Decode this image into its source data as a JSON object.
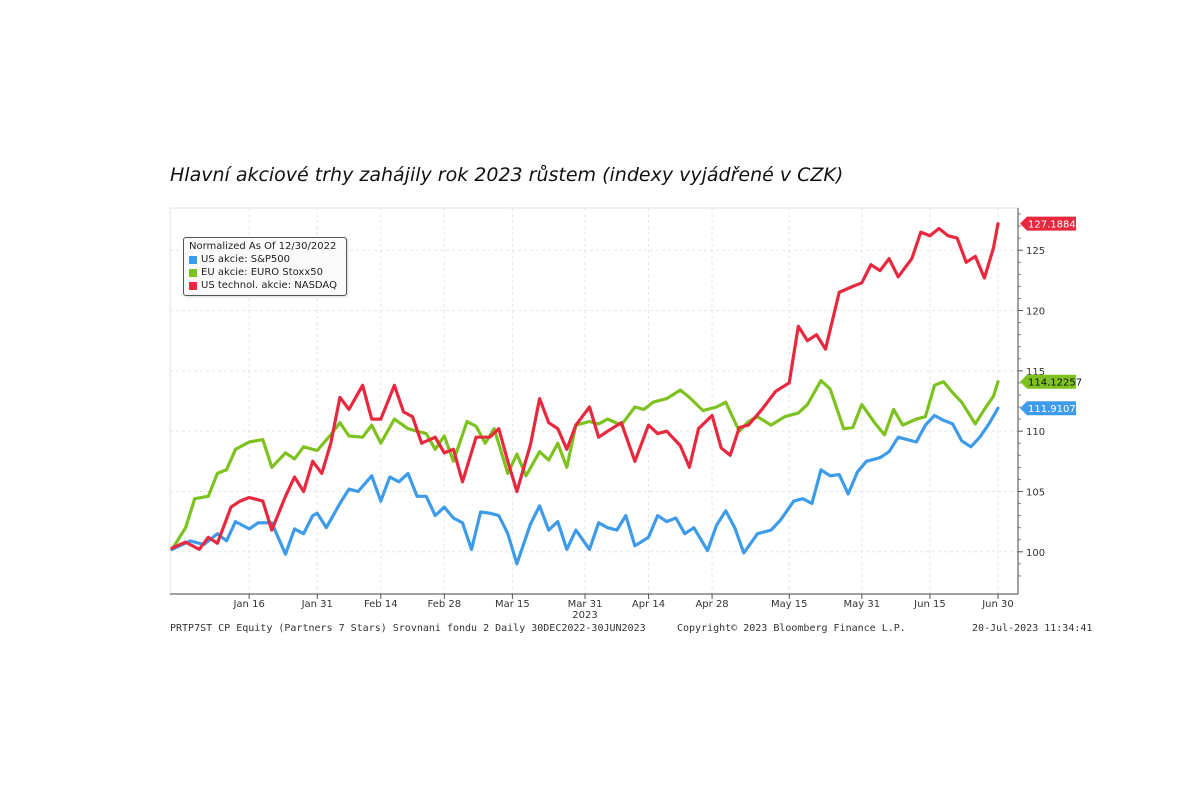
{
  "chart_data": {
    "type": "line",
    "title": "Hlavní akciové trhy zahájily rok 2023 růstem (indexy vyjádřené v CZK)",
    "legend_header": "Normalized As Of 12/30/2022",
    "legend_position": "top-left",
    "grid": true,
    "x_tick_labels": [
      "Jan 16",
      "Jan 31",
      "Feb 14",
      "Feb 28",
      "Mar 15",
      "Mar 31",
      "Apr 14",
      "Apr 28",
      "May 15",
      "May 31",
      "Jun 15",
      "Jun 30"
    ],
    "x_year_label": "2023",
    "y_tick_labels": [
      "100",
      "105",
      "110",
      "115",
      "120",
      "125"
    ],
    "ylim": [
      96.5,
      128.5
    ],
    "series": [
      {
        "name": "US akcie: S&P500",
        "color": "#3d9be9",
        "last_value": "111.91076",
        "values": [
          [
            "2022-12-30",
            100.2
          ],
          [
            "2023-01-03",
            100.9
          ],
          [
            "2023-01-06",
            100.6
          ],
          [
            "2023-01-09",
            101.5
          ],
          [
            "2023-01-11",
            100.9
          ],
          [
            "2023-01-13",
            102.5
          ],
          [
            "2023-01-16",
            101.9
          ],
          [
            "2023-01-18",
            102.4
          ],
          [
            "2023-01-21",
            102.4
          ],
          [
            "2023-01-24",
            99.8
          ],
          [
            "2023-01-26",
            101.9
          ],
          [
            "2023-01-28",
            101.5
          ],
          [
            "2023-01-30",
            103.0
          ],
          [
            "2023-01-31",
            103.2
          ],
          [
            "2023-02-02",
            102.0
          ],
          [
            "2023-02-05",
            104.0
          ],
          [
            "2023-02-07",
            105.2
          ],
          [
            "2023-02-09",
            105.0
          ],
          [
            "2023-02-12",
            106.3
          ],
          [
            "2023-02-14",
            104.2
          ],
          [
            "2023-02-16",
            106.2
          ],
          [
            "2023-02-18",
            105.8
          ],
          [
            "2023-02-20",
            106.5
          ],
          [
            "2023-02-22",
            104.6
          ],
          [
            "2023-02-24",
            104.6
          ],
          [
            "2023-02-26",
            103.0
          ],
          [
            "2023-02-28",
            103.7
          ],
          [
            "2023-03-02",
            102.8
          ],
          [
            "2023-03-04",
            102.4
          ],
          [
            "2023-03-06",
            100.2
          ],
          [
            "2023-03-08",
            103.3
          ],
          [
            "2023-03-10",
            103.2
          ],
          [
            "2023-03-12",
            103.0
          ],
          [
            "2023-03-14",
            101.5
          ],
          [
            "2023-03-16",
            99.0
          ],
          [
            "2023-03-19",
            102.3
          ],
          [
            "2023-03-21",
            103.8
          ],
          [
            "2023-03-23",
            101.8
          ],
          [
            "2023-03-25",
            102.5
          ],
          [
            "2023-03-27",
            100.2
          ],
          [
            "2023-03-29",
            101.8
          ],
          [
            "2023-04-01",
            100.2
          ],
          [
            "2023-04-03",
            102.4
          ],
          [
            "2023-04-05",
            102.0
          ],
          [
            "2023-04-07",
            101.8
          ],
          [
            "2023-04-09",
            103.0
          ],
          [
            "2023-04-11",
            100.5
          ],
          [
            "2023-04-14",
            101.2
          ],
          [
            "2023-04-16",
            103.0
          ],
          [
            "2023-04-18",
            102.5
          ],
          [
            "2023-04-20",
            102.8
          ],
          [
            "2023-04-22",
            101.5
          ],
          [
            "2023-04-24",
            102.0
          ],
          [
            "2023-04-27",
            100.1
          ],
          [
            "2023-04-29",
            102.2
          ],
          [
            "2023-05-01",
            103.4
          ],
          [
            "2023-05-03",
            102.0
          ],
          [
            "2023-05-05",
            99.9
          ],
          [
            "2023-05-08",
            101.5
          ],
          [
            "2023-05-11",
            101.8
          ],
          [
            "2023-05-13",
            102.6
          ],
          [
            "2023-05-16",
            104.2
          ],
          [
            "2023-05-18",
            104.4
          ],
          [
            "2023-05-20",
            104.0
          ],
          [
            "2023-05-22",
            106.8
          ],
          [
            "2023-05-24",
            106.3
          ],
          [
            "2023-05-26",
            106.4
          ],
          [
            "2023-05-28",
            104.8
          ],
          [
            "2023-05-30",
            106.6
          ],
          [
            "2023-06-01",
            107.5
          ],
          [
            "2023-06-04",
            107.8
          ],
          [
            "2023-06-06",
            108.3
          ],
          [
            "2023-06-08",
            109.5
          ],
          [
            "2023-06-10",
            109.3
          ],
          [
            "2023-06-12",
            109.1
          ],
          [
            "2023-06-14",
            110.5
          ],
          [
            "2023-06-16",
            111.3
          ],
          [
            "2023-06-18",
            110.9
          ],
          [
            "2023-06-20",
            110.6
          ],
          [
            "2023-06-22",
            109.2
          ],
          [
            "2023-06-24",
            108.7
          ],
          [
            "2023-06-26",
            109.5
          ],
          [
            "2023-06-28",
            110.6
          ],
          [
            "2023-06-30",
            111.9
          ]
        ]
      },
      {
        "name": "EU akcie: EURO Stoxx50",
        "color": "#7dc21f",
        "last_value": "114.12257",
        "values": [
          [
            "2022-12-30",
            100.2
          ],
          [
            "2023-01-02",
            102.0
          ],
          [
            "2023-01-04",
            104.4
          ],
          [
            "2023-01-07",
            104.6
          ],
          [
            "2023-01-09",
            106.5
          ],
          [
            "2023-01-11",
            106.8
          ],
          [
            "2023-01-13",
            108.5
          ],
          [
            "2023-01-16",
            109.1
          ],
          [
            "2023-01-19",
            109.3
          ],
          [
            "2023-01-21",
            107.0
          ],
          [
            "2023-01-24",
            108.2
          ],
          [
            "2023-01-26",
            107.7
          ],
          [
            "2023-01-28",
            108.7
          ],
          [
            "2023-01-31",
            108.4
          ],
          [
            "2023-02-03",
            109.7
          ],
          [
            "2023-02-05",
            110.7
          ],
          [
            "2023-02-07",
            109.6
          ],
          [
            "2023-02-10",
            109.5
          ],
          [
            "2023-02-12",
            110.5
          ],
          [
            "2023-02-14",
            109.0
          ],
          [
            "2023-02-17",
            111.0
          ],
          [
            "2023-02-20",
            110.2
          ],
          [
            "2023-02-22",
            110.0
          ],
          [
            "2023-02-24",
            109.8
          ],
          [
            "2023-02-26",
            108.5
          ],
          [
            "2023-02-28",
            109.6
          ],
          [
            "2023-03-02",
            107.5
          ],
          [
            "2023-03-05",
            110.8
          ],
          [
            "2023-03-07",
            110.4
          ],
          [
            "2023-03-09",
            109.0
          ],
          [
            "2023-03-11",
            110.2
          ],
          [
            "2023-03-14",
            106.5
          ],
          [
            "2023-03-16",
            108.1
          ],
          [
            "2023-03-18",
            106.3
          ],
          [
            "2023-03-21",
            108.3
          ],
          [
            "2023-03-23",
            107.6
          ],
          [
            "2023-03-25",
            109.0
          ],
          [
            "2023-03-27",
            107.0
          ],
          [
            "2023-03-29",
            110.5
          ],
          [
            "2023-04-01",
            110.8
          ],
          [
            "2023-04-03",
            110.6
          ],
          [
            "2023-04-05",
            111.0
          ],
          [
            "2023-04-08",
            110.5
          ],
          [
            "2023-04-11",
            112.0
          ],
          [
            "2023-04-13",
            111.8
          ],
          [
            "2023-04-15",
            112.4
          ],
          [
            "2023-04-18",
            112.7
          ],
          [
            "2023-04-21",
            113.4
          ],
          [
            "2023-04-23",
            112.8
          ],
          [
            "2023-04-26",
            111.7
          ],
          [
            "2023-04-29",
            112.0
          ],
          [
            "2023-05-01",
            112.4
          ],
          [
            "2023-05-04",
            110.0
          ],
          [
            "2023-05-06",
            110.8
          ],
          [
            "2023-05-08",
            111.2
          ],
          [
            "2023-05-11",
            110.5
          ],
          [
            "2023-05-14",
            111.2
          ],
          [
            "2023-05-17",
            111.5
          ],
          [
            "2023-05-19",
            112.2
          ],
          [
            "2023-05-22",
            114.2
          ],
          [
            "2023-05-24",
            113.5
          ],
          [
            "2023-05-27",
            110.2
          ],
          [
            "2023-05-29",
            110.3
          ],
          [
            "2023-05-31",
            112.2
          ],
          [
            "2023-06-03",
            110.6
          ],
          [
            "2023-06-05",
            109.7
          ],
          [
            "2023-06-07",
            111.8
          ],
          [
            "2023-06-09",
            110.5
          ],
          [
            "2023-06-12",
            111.0
          ],
          [
            "2023-06-14",
            111.2
          ],
          [
            "2023-06-16",
            113.8
          ],
          [
            "2023-06-18",
            114.1
          ],
          [
            "2023-06-20",
            113.2
          ],
          [
            "2023-06-22",
            112.4
          ],
          [
            "2023-06-25",
            110.6
          ],
          [
            "2023-06-27",
            111.8
          ],
          [
            "2023-06-29",
            112.9
          ],
          [
            "2023-06-30",
            114.1
          ]
        ]
      },
      {
        "name": "US technol. akcie: NASDAQ",
        "color": "#e8283e",
        "last_value": "127.18841",
        "values": [
          [
            "2022-12-30",
            100.3
          ],
          [
            "2023-01-02",
            100.8
          ],
          [
            "2023-01-05",
            100.2
          ],
          [
            "2023-01-07",
            101.2
          ],
          [
            "2023-01-09",
            100.7
          ],
          [
            "2023-01-12",
            103.7
          ],
          [
            "2023-01-14",
            104.2
          ],
          [
            "2023-01-16",
            104.5
          ],
          [
            "2023-01-19",
            104.2
          ],
          [
            "2023-01-21",
            101.8
          ],
          [
            "2023-01-24",
            104.6
          ],
          [
            "2023-01-26",
            106.2
          ],
          [
            "2023-01-28",
            105.0
          ],
          [
            "2023-01-30",
            107.5
          ],
          [
            "2023-02-01",
            106.5
          ],
          [
            "2023-02-03",
            109.0
          ],
          [
            "2023-02-05",
            112.8
          ],
          [
            "2023-02-07",
            111.8
          ],
          [
            "2023-02-10",
            113.8
          ],
          [
            "2023-02-12",
            111.0
          ],
          [
            "2023-02-14",
            111.0
          ],
          [
            "2023-02-17",
            113.8
          ],
          [
            "2023-02-19",
            111.6
          ],
          [
            "2023-02-21",
            111.2
          ],
          [
            "2023-02-23",
            109.0
          ],
          [
            "2023-02-26",
            109.5
          ],
          [
            "2023-02-28",
            108.2
          ],
          [
            "2023-03-02",
            108.5
          ],
          [
            "2023-03-04",
            105.8
          ],
          [
            "2023-03-07",
            109.5
          ],
          [
            "2023-03-10",
            109.5
          ],
          [
            "2023-03-12",
            110.2
          ],
          [
            "2023-03-14",
            107.5
          ],
          [
            "2023-03-16",
            105.0
          ],
          [
            "2023-03-19",
            108.9
          ],
          [
            "2023-03-21",
            112.7
          ],
          [
            "2023-03-23",
            110.7
          ],
          [
            "2023-03-25",
            110.2
          ],
          [
            "2023-03-27",
            108.5
          ],
          [
            "2023-03-29",
            110.5
          ],
          [
            "2023-04-01",
            112.0
          ],
          [
            "2023-04-03",
            109.5
          ],
          [
            "2023-04-05",
            110.0
          ],
          [
            "2023-04-08",
            110.7
          ],
          [
            "2023-04-11",
            107.5
          ],
          [
            "2023-04-14",
            110.5
          ],
          [
            "2023-04-16",
            109.8
          ],
          [
            "2023-04-18",
            110.0
          ],
          [
            "2023-04-21",
            108.8
          ],
          [
            "2023-04-23",
            107.0
          ],
          [
            "2023-04-25",
            110.2
          ],
          [
            "2023-04-28",
            111.3
          ],
          [
            "2023-04-30",
            108.6
          ],
          [
            "2023-05-02",
            108.0
          ],
          [
            "2023-05-04",
            110.3
          ],
          [
            "2023-05-06",
            110.5
          ],
          [
            "2023-05-09",
            111.8
          ],
          [
            "2023-05-12",
            113.3
          ],
          [
            "2023-05-15",
            114.0
          ],
          [
            "2023-05-17",
            118.7
          ],
          [
            "2023-05-19",
            117.5
          ],
          [
            "2023-05-21",
            118.0
          ],
          [
            "2023-05-23",
            116.8
          ],
          [
            "2023-05-26",
            121.5
          ],
          [
            "2023-05-29",
            122.0
          ],
          [
            "2023-05-31",
            122.3
          ],
          [
            "2023-06-02",
            123.8
          ],
          [
            "2023-06-04",
            123.3
          ],
          [
            "2023-06-06",
            124.3
          ],
          [
            "2023-06-08",
            122.8
          ],
          [
            "2023-06-11",
            124.3
          ],
          [
            "2023-06-13",
            126.5
          ],
          [
            "2023-06-15",
            126.2
          ],
          [
            "2023-06-17",
            126.8
          ],
          [
            "2023-06-19",
            126.2
          ],
          [
            "2023-06-21",
            126.0
          ],
          [
            "2023-06-23",
            124.0
          ],
          [
            "2023-06-25",
            124.5
          ],
          [
            "2023-06-27",
            122.7
          ],
          [
            "2023-06-29",
            125.2
          ],
          [
            "2023-06-30",
            127.2
          ]
        ]
      }
    ]
  },
  "footer": {
    "left": "PRTP7ST CP Equity (Partners 7 Stars) Srovnani fondu 2  Daily 30DEC2022-30JUN2023",
    "center": "Copyright© 2023 Bloomberg Finance L.P.",
    "right": "20-Jul-2023 11:34:41"
  }
}
